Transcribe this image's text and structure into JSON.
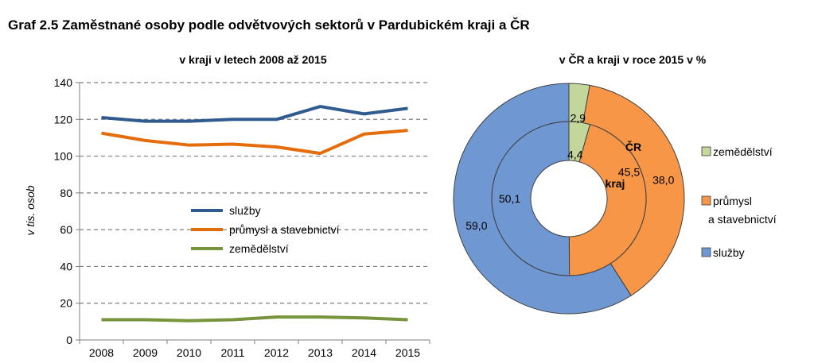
{
  "title": "Graf 2.5 Zaměstnané osoby podle odvětvových sektorů v Pardubickém kraji a ČR",
  "chart_data": [
    {
      "type": "line",
      "title": "v kraji v letech 2008 až 2015",
      "xlabel": "",
      "ylabel": "v tis. osob",
      "x": [
        "2008",
        "2009",
        "2010",
        "2011",
        "2012",
        "2013",
        "2014",
        "2015"
      ],
      "ylim": [
        0,
        140
      ],
      "yticks": [
        0,
        20,
        40,
        60,
        80,
        100,
        120,
        140
      ],
      "grid": true,
      "legend_position": "center",
      "series": [
        {
          "name": "služby",
          "color": "#2f5b8f",
          "values": [
            121,
            119,
            119,
            120,
            120,
            127,
            123,
            126
          ]
        },
        {
          "name": "průmysl a stavebnictví",
          "color": "#e46c0a",
          "values": [
            112.5,
            108.5,
            106,
            106.5,
            105,
            101.5,
            112,
            114
          ]
        },
        {
          "name": "zemědělství",
          "color": "#77933c",
          "values": [
            11,
            11,
            10.5,
            11,
            12.5,
            12.5,
            12,
            11
          ]
        }
      ]
    },
    {
      "type": "pie",
      "subtype": "donut",
      "title": "v ČR a kraji v roce 2015 v %",
      "ring_labels": {
        "outer": "ČR",
        "inner": "kraj"
      },
      "categories": [
        "zemědělství",
        "průmysl a stavebnictví",
        "služby"
      ],
      "legend_labels": [
        [
          "zemědělství"
        ],
        [
          "průmysl",
          "a stavebnictví"
        ],
        [
          "služby"
        ]
      ],
      "colors": [
        "#c3d69b",
        "#f79646",
        "#6f97d2"
      ],
      "legend_position": "right",
      "series": [
        {
          "name": "ČR",
          "values": [
            2.9,
            38.0,
            59.0
          ],
          "labels": [
            "2,9",
            "38,0",
            "59,0"
          ]
        },
        {
          "name": "kraj",
          "values": [
            4.4,
            45.5,
            50.1
          ],
          "labels": [
            "4,4",
            "45,5",
            "50,1"
          ]
        }
      ]
    }
  ]
}
